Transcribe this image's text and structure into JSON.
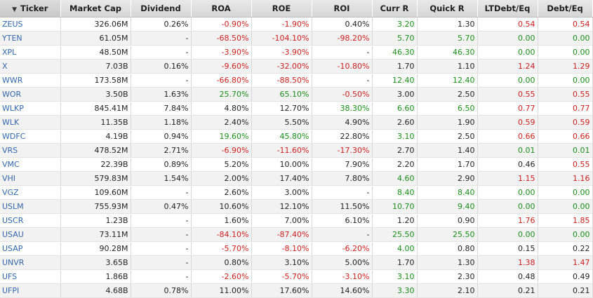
{
  "columns": [
    "Ticker",
    "Market Cap",
    "Dividend",
    "ROA",
    "ROE",
    "ROI",
    "Curr R",
    "Quick R",
    "LTDebt/Eq",
    "Debt/Eq"
  ],
  "sort_indicator": "▼",
  "rows": [
    {
      "t": "ZEUS",
      "c": [
        [
          "326.06M",
          "n"
        ],
        [
          "0.26%",
          "n"
        ],
        [
          "-0.90%",
          "r"
        ],
        [
          "-1.90%",
          "r"
        ],
        [
          "0.40%",
          "n"
        ],
        [
          "3.20",
          "g"
        ],
        [
          "1.30",
          "n"
        ],
        [
          "0.54",
          "r"
        ],
        [
          "0.54",
          "r"
        ]
      ]
    },
    {
      "t": "YTEN",
      "c": [
        [
          "61.05M",
          "n"
        ],
        [
          "-",
          "n"
        ],
        [
          "-68.50%",
          "r"
        ],
        [
          "-104.10%",
          "r"
        ],
        [
          "-98.20%",
          "r"
        ],
        [
          "5.70",
          "g"
        ],
        [
          "5.70",
          "g"
        ],
        [
          "0.00",
          "g"
        ],
        [
          "0.00",
          "g"
        ]
      ]
    },
    {
      "t": "XPL",
      "c": [
        [
          "48.50M",
          "n"
        ],
        [
          "-",
          "n"
        ],
        [
          "-3.90%",
          "r"
        ],
        [
          "-3.90%",
          "r"
        ],
        [
          "-",
          "n"
        ],
        [
          "46.30",
          "g"
        ],
        [
          "46.30",
          "g"
        ],
        [
          "0.00",
          "g"
        ],
        [
          "0.00",
          "g"
        ]
      ]
    },
    {
      "t": "X",
      "c": [
        [
          "7.03B",
          "n"
        ],
        [
          "0.16%",
          "n"
        ],
        [
          "-9.60%",
          "r"
        ],
        [
          "-32.00%",
          "r"
        ],
        [
          "-10.80%",
          "r"
        ],
        [
          "1.70",
          "n"
        ],
        [
          "1.10",
          "n"
        ],
        [
          "1.24",
          "r"
        ],
        [
          "1.29",
          "r"
        ]
      ]
    },
    {
      "t": "WWR",
      "c": [
        [
          "173.58M",
          "n"
        ],
        [
          "-",
          "n"
        ],
        [
          "-66.80%",
          "r"
        ],
        [
          "-88.50%",
          "r"
        ],
        [
          "-",
          "n"
        ],
        [
          "12.40",
          "g"
        ],
        [
          "12.40",
          "g"
        ],
        [
          "0.00",
          "g"
        ],
        [
          "0.00",
          "g"
        ]
      ]
    },
    {
      "t": "WOR",
      "c": [
        [
          "3.50B",
          "n"
        ],
        [
          "1.63%",
          "n"
        ],
        [
          "25.70%",
          "g"
        ],
        [
          "65.10%",
          "g"
        ],
        [
          "-0.50%",
          "r"
        ],
        [
          "3.00",
          "n"
        ],
        [
          "2.50",
          "n"
        ],
        [
          "0.55",
          "r"
        ],
        [
          "0.55",
          "r"
        ]
      ]
    },
    {
      "t": "WLKP",
      "c": [
        [
          "845.41M",
          "n"
        ],
        [
          "7.84%",
          "n"
        ],
        [
          "4.80%",
          "n"
        ],
        [
          "12.70%",
          "n"
        ],
        [
          "38.30%",
          "g"
        ],
        [
          "6.60",
          "g"
        ],
        [
          "6.50",
          "g"
        ],
        [
          "0.77",
          "r"
        ],
        [
          "0.77",
          "r"
        ]
      ]
    },
    {
      "t": "WLK",
      "c": [
        [
          "11.35B",
          "n"
        ],
        [
          "1.18%",
          "n"
        ],
        [
          "2.40%",
          "n"
        ],
        [
          "5.50%",
          "n"
        ],
        [
          "4.90%",
          "n"
        ],
        [
          "2.60",
          "n"
        ],
        [
          "1.90",
          "n"
        ],
        [
          "0.59",
          "r"
        ],
        [
          "0.59",
          "r"
        ]
      ]
    },
    {
      "t": "WDFC",
      "c": [
        [
          "4.19B",
          "n"
        ],
        [
          "0.94%",
          "n"
        ],
        [
          "19.60%",
          "g"
        ],
        [
          "45.80%",
          "g"
        ],
        [
          "22.80%",
          "n"
        ],
        [
          "3.10",
          "g"
        ],
        [
          "2.50",
          "n"
        ],
        [
          "0.66",
          "r"
        ],
        [
          "0.66",
          "r"
        ]
      ]
    },
    {
      "t": "VRS",
      "c": [
        [
          "478.52M",
          "n"
        ],
        [
          "2.71%",
          "n"
        ],
        [
          "-6.90%",
          "r"
        ],
        [
          "-11.60%",
          "r"
        ],
        [
          "-17.30%",
          "r"
        ],
        [
          "2.70",
          "n"
        ],
        [
          "1.40",
          "n"
        ],
        [
          "0.01",
          "g"
        ],
        [
          "0.01",
          "g"
        ]
      ]
    },
    {
      "t": "VMC",
      "c": [
        [
          "22.39B",
          "n"
        ],
        [
          "0.89%",
          "n"
        ],
        [
          "5.20%",
          "n"
        ],
        [
          "10.00%",
          "n"
        ],
        [
          "7.90%",
          "n"
        ],
        [
          "2.20",
          "n"
        ],
        [
          "1.70",
          "n"
        ],
        [
          "0.46",
          "n"
        ],
        [
          "0.55",
          "r"
        ]
      ]
    },
    {
      "t": "VHI",
      "c": [
        [
          "579.83M",
          "n"
        ],
        [
          "1.54%",
          "n"
        ],
        [
          "2.00%",
          "n"
        ],
        [
          "17.40%",
          "n"
        ],
        [
          "7.80%",
          "n"
        ],
        [
          "4.60",
          "g"
        ],
        [
          "2.90",
          "n"
        ],
        [
          "1.15",
          "r"
        ],
        [
          "1.16",
          "r"
        ]
      ]
    },
    {
      "t": "VGZ",
      "c": [
        [
          "109.60M",
          "n"
        ],
        [
          "-",
          "n"
        ],
        [
          "2.60%",
          "n"
        ],
        [
          "3.00%",
          "n"
        ],
        [
          "-",
          "n"
        ],
        [
          "8.40",
          "g"
        ],
        [
          "8.40",
          "g"
        ],
        [
          "0.00",
          "g"
        ],
        [
          "0.00",
          "g"
        ]
      ]
    },
    {
      "t": "USLM",
      "c": [
        [
          "755.93M",
          "n"
        ],
        [
          "0.47%",
          "n"
        ],
        [
          "10.60%",
          "n"
        ],
        [
          "12.10%",
          "n"
        ],
        [
          "11.50%",
          "n"
        ],
        [
          "10.70",
          "g"
        ],
        [
          "9.40",
          "g"
        ],
        [
          "0.00",
          "g"
        ],
        [
          "0.00",
          "g"
        ]
      ]
    },
    {
      "t": "USCR",
      "c": [
        [
          "1.23B",
          "n"
        ],
        [
          "-",
          "n"
        ],
        [
          "1.60%",
          "n"
        ],
        [
          "7.00%",
          "n"
        ],
        [
          "6.10%",
          "n"
        ],
        [
          "1.20",
          "n"
        ],
        [
          "0.90",
          "n"
        ],
        [
          "1.76",
          "r"
        ],
        [
          "1.85",
          "r"
        ]
      ]
    },
    {
      "t": "USAU",
      "c": [
        [
          "73.11M",
          "n"
        ],
        [
          "-",
          "n"
        ],
        [
          "-84.10%",
          "r"
        ],
        [
          "-87.40%",
          "r"
        ],
        [
          "-",
          "n"
        ],
        [
          "25.50",
          "g"
        ],
        [
          "25.50",
          "g"
        ],
        [
          "0.00",
          "g"
        ],
        [
          "0.00",
          "g"
        ]
      ]
    },
    {
      "t": "USAP",
      "c": [
        [
          "90.28M",
          "n"
        ],
        [
          "-",
          "n"
        ],
        [
          "-5.70%",
          "r"
        ],
        [
          "-8.10%",
          "r"
        ],
        [
          "-6.20%",
          "r"
        ],
        [
          "4.00",
          "g"
        ],
        [
          "0.80",
          "n"
        ],
        [
          "0.15",
          "n"
        ],
        [
          "0.22",
          "n"
        ]
      ]
    },
    {
      "t": "UNVR",
      "c": [
        [
          "3.65B",
          "n"
        ],
        [
          "-",
          "n"
        ],
        [
          "0.80%",
          "n"
        ],
        [
          "3.10%",
          "n"
        ],
        [
          "5.00%",
          "n"
        ],
        [
          "1.70",
          "n"
        ],
        [
          "1.30",
          "n"
        ],
        [
          "1.38",
          "r"
        ],
        [
          "1.47",
          "r"
        ]
      ]
    },
    {
      "t": "UFS",
      "c": [
        [
          "1.86B",
          "n"
        ],
        [
          "-",
          "n"
        ],
        [
          "-2.60%",
          "r"
        ],
        [
          "-5.70%",
          "r"
        ],
        [
          "-3.10%",
          "r"
        ],
        [
          "3.10",
          "g"
        ],
        [
          "2.30",
          "n"
        ],
        [
          "0.48",
          "n"
        ],
        [
          "0.49",
          "n"
        ]
      ]
    },
    {
      "t": "UFPI",
      "c": [
        [
          "4.68B",
          "n"
        ],
        [
          "0.78%",
          "n"
        ],
        [
          "11.00%",
          "n"
        ],
        [
          "17.60%",
          "n"
        ],
        [
          "14.60%",
          "n"
        ],
        [
          "3.30",
          "g"
        ],
        [
          "2.10",
          "n"
        ],
        [
          "0.21",
          "n"
        ],
        [
          "0.21",
          "n"
        ]
      ]
    }
  ]
}
